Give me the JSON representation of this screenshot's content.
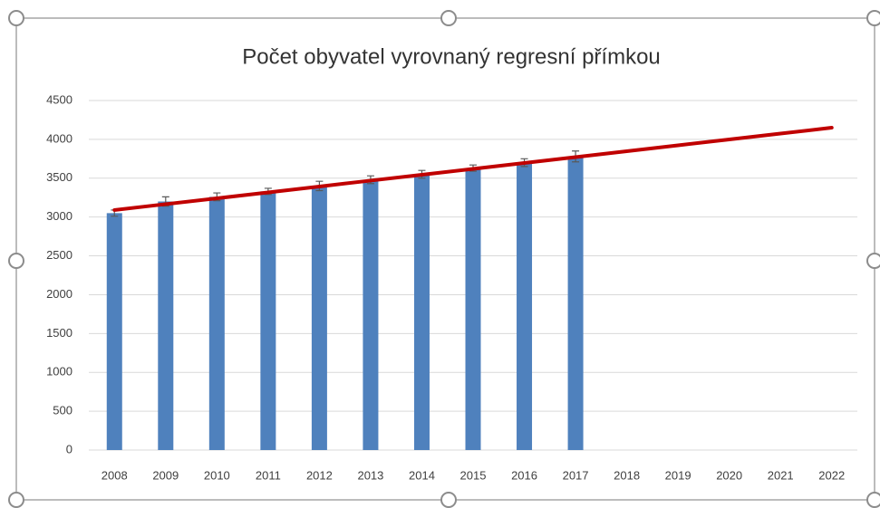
{
  "chart_data": {
    "type": "bar",
    "title": "Počet obyvatel vyrovnaný regresní přímkou",
    "categories": [
      "2008",
      "2009",
      "2010",
      "2011",
      "2012",
      "2013",
      "2014",
      "2015",
      "2016",
      "2017",
      "2018",
      "2019",
      "2020",
      "2021",
      "2022"
    ],
    "values": [
      3050,
      3200,
      3260,
      3330,
      3400,
      3480,
      3550,
      3630,
      3700,
      3780,
      null,
      null,
      null,
      null,
      null
    ],
    "errors": [
      40,
      60,
      50,
      40,
      60,
      50,
      50,
      40,
      50,
      70,
      null,
      null,
      null,
      null,
      null
    ],
    "color": "#4f81bd",
    "trend": {
      "values": [
        3090,
        3166,
        3241,
        3317,
        3393,
        3469,
        3544,
        3620,
        3696,
        3771,
        3847,
        3923,
        3999,
        4074,
        4150
      ],
      "color": "#c00000"
    },
    "ylim": [
      0,
      4500
    ],
    "yticks": [
      0,
      500,
      1000,
      1500,
      2000,
      2500,
      3000,
      3500,
      4000,
      4500
    ],
    "grid": true
  }
}
